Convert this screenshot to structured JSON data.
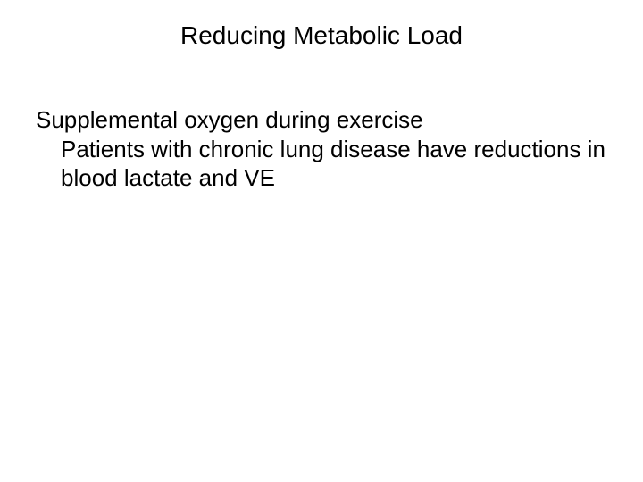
{
  "slide": {
    "title": "Reducing Metabolic Load",
    "body": {
      "line1": "Supplemental oxygen during exercise",
      "line2": "Patients with chronic lung disease have reductions in blood lactate and VE"
    }
  },
  "style": {
    "background_color": "#ffffff",
    "text_color": "#000000",
    "title_fontsize": 28,
    "body_fontsize": 26,
    "font_family": "Arial"
  }
}
